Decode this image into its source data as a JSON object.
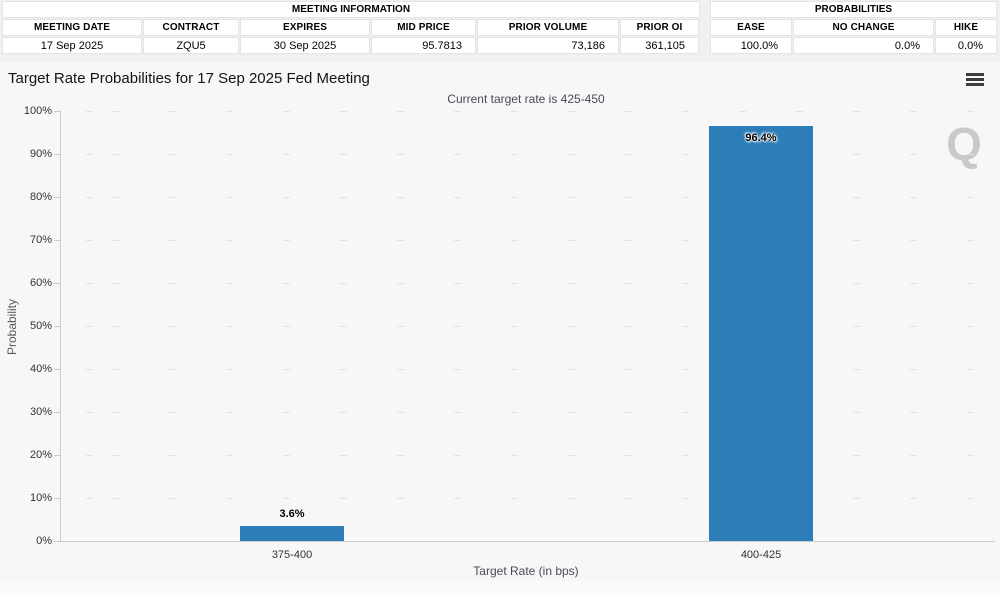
{
  "meeting_info_table": {
    "title": "MEETING INFORMATION",
    "columns": [
      {
        "label": "MEETING DATE",
        "value": "17 Sep 2025"
      },
      {
        "label": "CONTRACT",
        "value": "ZQU5"
      },
      {
        "label": "EXPIRES",
        "value": "30 Sep 2025"
      },
      {
        "label": "MID PRICE",
        "value": "95.7813"
      },
      {
        "label": "PRIOR VOLUME",
        "value": "73,186"
      },
      {
        "label": "PRIOR OI",
        "value": "361,105"
      }
    ]
  },
  "probabilities_table": {
    "title": "PROBABILITIES",
    "columns": [
      {
        "label": "EASE",
        "value": "100.0%"
      },
      {
        "label": "NO CHANGE",
        "value": "0.0%"
      },
      {
        "label": "HIKE",
        "value": "0.0%"
      }
    ]
  },
  "chart": {
    "menu_icon": "hamburger-icon",
    "watermark": "Q"
  },
  "chart_data": {
    "type": "bar",
    "title": "Target Rate Probabilities for 17 Sep 2025 Fed Meeting",
    "subtitle": "Current target rate is 425-450",
    "categories": [
      "375-400",
      "400-425"
    ],
    "values": [
      3.6,
      96.4
    ],
    "value_labels": [
      "3.6%",
      "96.4%"
    ],
    "xlabel": "Target Rate (in bps)",
    "ylabel": "Probability",
    "ylim": [
      0,
      100
    ],
    "ytick_step": 10,
    "ytick_suffix": "%",
    "bar_color": "#2d7eb8",
    "grid": "dashed-horizontal",
    "legend": "none"
  }
}
